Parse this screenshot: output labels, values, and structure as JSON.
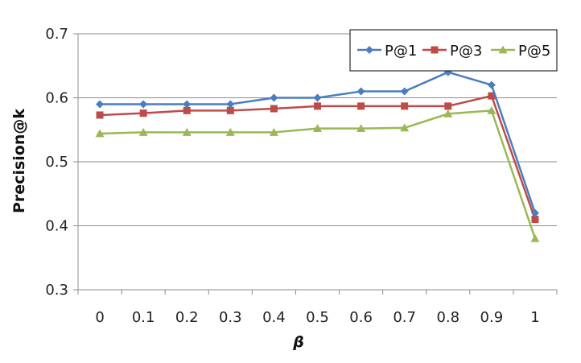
{
  "chart_data": {
    "type": "line",
    "title": "",
    "xlabel": "β",
    "ylabel": "Precision@k",
    "x": [
      0,
      0.1,
      0.2,
      0.3,
      0.4,
      0.5,
      0.6,
      0.7,
      0.8,
      0.9,
      1
    ],
    "x_tick_labels": [
      "0",
      "0.1",
      "0.2",
      "0.3",
      "0.4",
      "0.5",
      "0.6",
      "0.7",
      "0.8",
      "0.9",
      "1"
    ],
    "ylim": [
      0.3,
      0.7
    ],
    "y_ticks": [
      0.3,
      0.4,
      0.5,
      0.6,
      0.7
    ],
    "y_tick_labels": [
      "0.3",
      "0.4",
      "0.5",
      "0.6",
      "0.7"
    ],
    "grid": true,
    "legend_position": "top-right",
    "series": [
      {
        "name": "P@1",
        "color": "#4a7ebf",
        "marker": "diamond",
        "values": [
          0.59,
          0.59,
          0.59,
          0.59,
          0.6,
          0.6,
          0.61,
          0.61,
          0.64,
          0.62,
          0.42
        ]
      },
      {
        "name": "P@3",
        "color": "#be4b48",
        "marker": "square",
        "values": [
          0.573,
          0.576,
          0.58,
          0.58,
          0.583,
          0.587,
          0.587,
          0.587,
          0.587,
          0.603,
          0.41
        ]
      },
      {
        "name": "P@5",
        "color": "#98b954",
        "marker": "triangle",
        "values": [
          0.544,
          0.546,
          0.546,
          0.546,
          0.546,
          0.552,
          0.552,
          0.553,
          0.575,
          0.58,
          0.38
        ]
      }
    ]
  }
}
